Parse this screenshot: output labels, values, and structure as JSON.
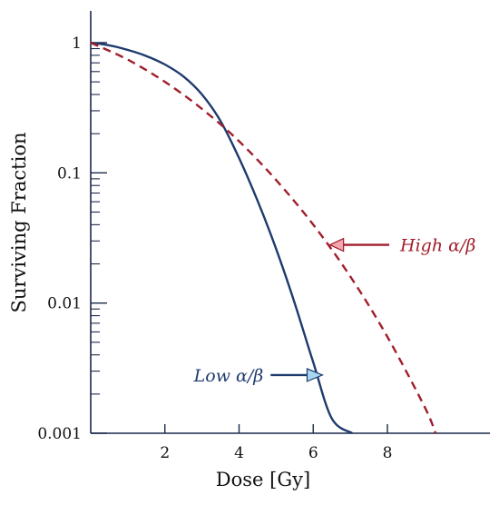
{
  "chart_data": {
    "type": "line",
    "xlabel": "Dose [Gy]",
    "ylabel": "Surviving Fraction",
    "xlim": [
      0,
      10.2
    ],
    "ylim": [
      0.001,
      1
    ],
    "yscale": "log",
    "grid": false,
    "x_ticks": [
      2,
      4,
      6,
      8
    ],
    "x_tick_labels": [
      "2",
      "4",
      "6",
      "8"
    ],
    "y_ticks": [
      1,
      0.1,
      0.01,
      0.001
    ],
    "y_tick_labels": [
      "1",
      "0.1",
      "0.01",
      "0.001"
    ],
    "series": [
      {
        "key": "low",
        "style": "solid",
        "color": "#1f3a6e",
        "x": [
          0,
          0.5,
          1,
          1.5,
          2,
          2.5,
          3,
          3.5,
          4,
          4.5,
          5,
          5.5,
          6,
          6.5,
          7.05
        ],
        "y": [
          1.0,
          0.955,
          0.88,
          0.79,
          0.68,
          0.55,
          0.4,
          0.25,
          0.13,
          0.061,
          0.026,
          0.01,
          0.0035,
          0.0013,
          0.001
        ]
      },
      {
        "key": "high",
        "style": "dashed",
        "color": "#a01e2c",
        "x": [
          0,
          1,
          2,
          3,
          4,
          5,
          6,
          7,
          8,
          9,
          9.3
        ],
        "y": [
          1.0,
          0.74,
          0.5,
          0.31,
          0.175,
          0.088,
          0.04,
          0.016,
          0.0055,
          0.0016,
          0.001
        ]
      }
    ],
    "annotations": [
      {
        "key": "high",
        "text": "High α/β",
        "color": "#a01e2c",
        "arrow_to": [
          6.45,
          0.028
        ],
        "arrow_from": [
          8.05,
          0.028
        ]
      },
      {
        "key": "low",
        "text": "Low α/β",
        "color": "#1f3a6e",
        "arrow_to": [
          6.25,
          0.0028
        ],
        "arrow_from": [
          4.85,
          0.0028
        ]
      }
    ]
  }
}
